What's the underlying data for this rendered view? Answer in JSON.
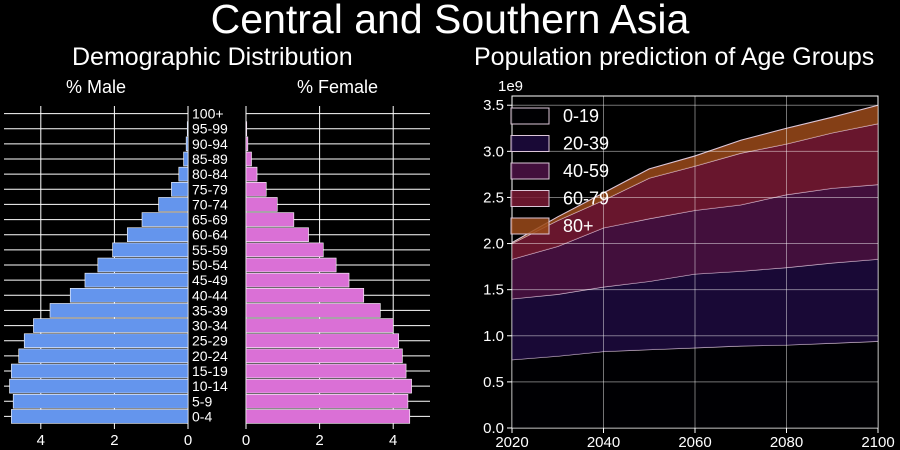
{
  "figure": {
    "title": "Central and Southern Asia",
    "left_title": "Demographic Distribution",
    "right_title": "Population prediction of Age Groups"
  },
  "chart_data": [
    {
      "type": "bar",
      "orientation": "horizontal",
      "mirrored": true,
      "title": "Demographic Distribution",
      "categories": [
        "0-4",
        "5-9",
        "10-14",
        "15-19",
        "20-24",
        "25-29",
        "30-34",
        "35-39",
        "40-44",
        "45-49",
        "50-54",
        "55-59",
        "60-64",
        "65-69",
        "70-74",
        "75-79",
        "80-84",
        "85-89",
        "90-94",
        "95-99",
        "100+"
      ],
      "series": [
        {
          "name": "% Male",
          "color": "#6495ED",
          "xlim": [
            5.0,
            0
          ],
          "xticks": [
            4,
            2,
            0
          ],
          "values": [
            4.8,
            4.75,
            4.85,
            4.8,
            4.6,
            4.45,
            4.2,
            3.75,
            3.2,
            2.8,
            2.45,
            2.05,
            1.65,
            1.25,
            0.8,
            0.45,
            0.25,
            0.12,
            0.05,
            0.02,
            0.0
          ]
        },
        {
          "name": "% Female",
          "color": "#DA70D6",
          "xlim": [
            0,
            5.0
          ],
          "xticks": [
            0,
            2,
            4
          ],
          "values": [
            4.45,
            4.4,
            4.5,
            4.35,
            4.25,
            4.15,
            4.0,
            3.65,
            3.2,
            2.8,
            2.45,
            2.1,
            1.7,
            1.3,
            0.85,
            0.55,
            0.3,
            0.15,
            0.05,
            0.02,
            0.0
          ]
        }
      ],
      "grid": true
    },
    {
      "type": "area",
      "stacked": true,
      "title": "Population prediction of Age Groups",
      "x": [
        2020,
        2030,
        2040,
        2050,
        2060,
        2070,
        2080,
        2090,
        2100
      ],
      "xlim": [
        2020,
        2100
      ],
      "xticks": [
        2020,
        2040,
        2060,
        2080,
        2100
      ],
      "ylim": [
        0,
        3.6
      ],
      "yticks": [
        0.0,
        0.5,
        1.0,
        1.5,
        2.0,
        2.5,
        3.0,
        3.5
      ],
      "yscale_label": "1e9",
      "legend": "top-left",
      "grid": true,
      "series": [
        {
          "name": "0-19",
          "color": "#000004",
          "values": [
            0.74,
            0.78,
            0.83,
            0.85,
            0.87,
            0.89,
            0.9,
            0.92,
            0.94
          ]
        },
        {
          "name": "20-39",
          "color": "#1D0A3F",
          "values": [
            0.66,
            0.67,
            0.7,
            0.74,
            0.8,
            0.81,
            0.84,
            0.87,
            0.89
          ]
        },
        {
          "name": "40-59",
          "color": "#4E1246",
          "values": [
            0.43,
            0.52,
            0.64,
            0.68,
            0.69,
            0.72,
            0.79,
            0.81,
            0.81
          ]
        },
        {
          "name": "60-79",
          "color": "#7A1A35",
          "values": [
            0.17,
            0.28,
            0.3,
            0.44,
            0.48,
            0.56,
            0.55,
            0.6,
            0.66
          ]
        },
        {
          "name": "80+",
          "color": "#9B4A1A",
          "values": [
            0.01,
            0.04,
            0.08,
            0.1,
            0.11,
            0.14,
            0.17,
            0.17,
            0.2
          ]
        }
      ]
    }
  ]
}
